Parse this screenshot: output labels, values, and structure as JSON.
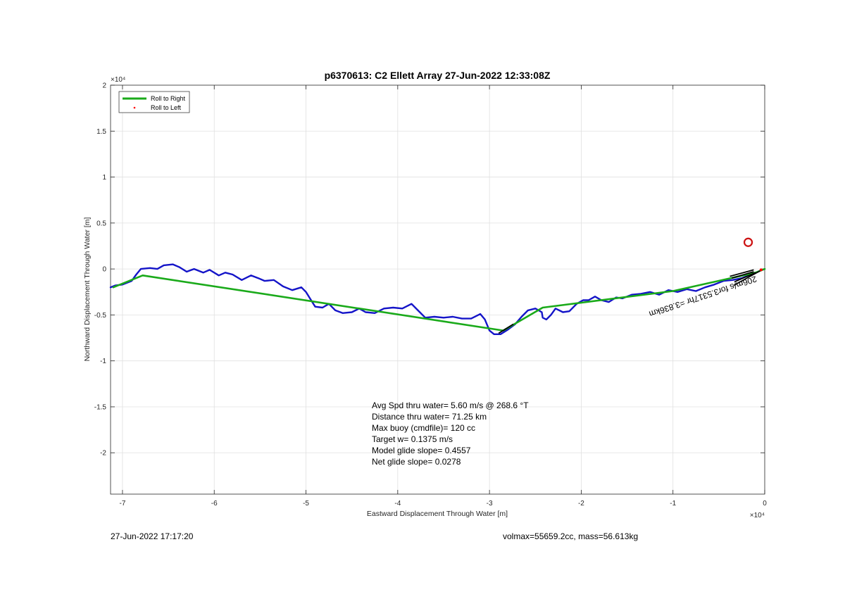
{
  "chart_data": {
    "type": "line",
    "title": "p6370613: C2 Ellett Array 27-Jun-2022 12:33:08Z",
    "xlabel": "Eastward Displacement Through Water [m]",
    "ylabel": "Northward Displacement Through Water [m]",
    "x_exponent": "×10⁴",
    "y_exponent": "×10⁴",
    "xlim": [
      -7.13,
      0
    ],
    "ylim": [
      -2.45,
      2.0
    ],
    "x_scale_factor": 10000,
    "xticks": [
      -7,
      -6,
      -5,
      -4,
      -3,
      -2,
      -1,
      0
    ],
    "xtick_labels": [
      "-7",
      "-6",
      "-5",
      "-4",
      "-3",
      "-2",
      "-1",
      "0"
    ],
    "yticks": [
      2,
      1.5,
      1,
      0.5,
      0,
      -0.5,
      -1,
      -1.5,
      -2
    ],
    "ytick_labels": [
      "2",
      "1.5",
      "1",
      "0.5",
      "0",
      "-0.5",
      "-1",
      "-1.5",
      "-2"
    ],
    "grid": true,
    "legend_placement": "top-left",
    "series": [
      {
        "name": "Roll to Right",
        "color": "#1aaa1a",
        "style": "line",
        "points": [
          [
            -7.1,
            -0.2
          ],
          [
            -6.78,
            -0.07
          ],
          [
            -2.85,
            -0.67
          ],
          [
            -2.42,
            -0.42
          ],
          [
            -1.0,
            -0.24
          ],
          [
            -0.1,
            -0.04
          ],
          [
            0,
            0
          ]
        ]
      },
      {
        "name": "Roll to Left",
        "color": "#ff0000",
        "style": "marker",
        "points": [
          [
            -0.04,
            -0.01
          ]
        ]
      },
      {
        "name": "",
        "color": "#1414c8",
        "style": "line",
        "points": [
          [
            -7.13,
            -0.2
          ],
          [
            -7.08,
            -0.18
          ],
          [
            -7.0,
            -0.17
          ],
          [
            -6.9,
            -0.13
          ],
          [
            -6.85,
            -0.06
          ],
          [
            -6.8,
            0.0
          ],
          [
            -6.7,
            0.01
          ],
          [
            -6.62,
            0.0
          ],
          [
            -6.55,
            0.04
          ],
          [
            -6.45,
            0.05
          ],
          [
            -6.38,
            0.02
          ],
          [
            -6.3,
            -0.03
          ],
          [
            -6.22,
            0.0
          ],
          [
            -6.12,
            -0.04
          ],
          [
            -6.05,
            -0.01
          ],
          [
            -5.95,
            -0.07
          ],
          [
            -5.88,
            -0.04
          ],
          [
            -5.8,
            -0.06
          ],
          [
            -5.7,
            -0.12
          ],
          [
            -5.6,
            -0.07
          ],
          [
            -5.52,
            -0.1
          ],
          [
            -5.45,
            -0.13
          ],
          [
            -5.35,
            -0.12
          ],
          [
            -5.25,
            -0.19
          ],
          [
            -5.15,
            -0.23
          ],
          [
            -5.05,
            -0.2
          ],
          [
            -5.0,
            -0.25
          ],
          [
            -4.95,
            -0.33
          ],
          [
            -4.9,
            -0.41
          ],
          [
            -4.82,
            -0.42
          ],
          [
            -4.75,
            -0.38
          ],
          [
            -4.68,
            -0.45
          ],
          [
            -4.6,
            -0.48
          ],
          [
            -4.5,
            -0.47
          ],
          [
            -4.42,
            -0.43
          ],
          [
            -4.35,
            -0.47
          ],
          [
            -4.25,
            -0.48
          ],
          [
            -4.15,
            -0.43
          ],
          [
            -4.05,
            -0.42
          ],
          [
            -3.95,
            -0.43
          ],
          [
            -3.85,
            -0.38
          ],
          [
            -3.78,
            -0.45
          ],
          [
            -3.7,
            -0.53
          ],
          [
            -3.6,
            -0.52
          ],
          [
            -3.5,
            -0.53
          ],
          [
            -3.4,
            -0.52
          ],
          [
            -3.3,
            -0.54
          ],
          [
            -3.2,
            -0.54
          ],
          [
            -3.1,
            -0.49
          ],
          [
            -3.05,
            -0.55
          ],
          [
            -3.0,
            -0.67
          ],
          [
            -2.95,
            -0.71
          ],
          [
            -2.88,
            -0.71
          ],
          [
            -2.8,
            -0.66
          ],
          [
            -2.72,
            -0.6
          ],
          [
            -2.65,
            -0.52
          ],
          [
            -2.58,
            -0.45
          ],
          [
            -2.5,
            -0.43
          ],
          [
            -2.43,
            -0.47
          ],
          [
            -2.42,
            -0.53
          ],
          [
            -2.38,
            -0.55
          ],
          [
            -2.33,
            -0.5
          ],
          [
            -2.28,
            -0.43
          ],
          [
            -2.2,
            -0.47
          ],
          [
            -2.13,
            -0.46
          ],
          [
            -2.05,
            -0.38
          ],
          [
            -1.98,
            -0.34
          ],
          [
            -1.92,
            -0.34
          ],
          [
            -1.85,
            -0.3
          ],
          [
            -1.78,
            -0.34
          ],
          [
            -1.7,
            -0.36
          ],
          [
            -1.62,
            -0.31
          ],
          [
            -1.55,
            -0.32
          ],
          [
            -1.45,
            -0.28
          ],
          [
            -1.35,
            -0.27
          ],
          [
            -1.25,
            -0.25
          ],
          [
            -1.15,
            -0.28
          ],
          [
            -1.05,
            -0.23
          ],
          [
            -0.95,
            -0.25
          ],
          [
            -0.85,
            -0.22
          ],
          [
            -0.75,
            -0.24
          ],
          [
            -0.65,
            -0.2
          ],
          [
            -0.55,
            -0.17
          ],
          [
            -0.45,
            -0.13
          ],
          [
            -0.35,
            -0.12
          ],
          [
            -0.25,
            -0.1
          ],
          [
            -0.15,
            -0.06
          ],
          [
            -0.05,
            -0.02
          ],
          [
            0,
            0
          ]
        ]
      }
    ],
    "marker": {
      "color": "#cc1111",
      "shape": "circle",
      "point": [
        -0.18,
        0.29
      ]
    },
    "current_vectors": {
      "color": "#000000",
      "segments": [
        [
          [
            -0.38,
            -0.08
          ],
          [
            -0.12,
            -0.01
          ]
        ],
        [
          [
            -0.36,
            -0.1
          ],
          [
            -0.12,
            -0.03
          ]
        ],
        [
          [
            -0.34,
            -0.18
          ],
          [
            -0.05,
            -0.02
          ]
        ],
        [
          [
            -0.33,
            -0.14
          ],
          [
            -0.1,
            -0.04
          ]
        ],
        [
          [
            -2.9,
            -0.7
          ],
          [
            -2.74,
            -0.6
          ]
        ]
      ]
    },
    "annotations": {
      "rotated_label": "206m/s for3.5317hr =3.836km",
      "stats": [
        "Avg Spd thru water=  5.60 m/s @ 268.6 °T",
        "Distance thru water= 71.25 km",
        "Max buoy (cmdfile)= 120 cc",
        "Target w= 0.1375 m/s",
        "Model glide slope= 0.4557",
        "Net glide slope= 0.0278"
      ]
    },
    "footer": {
      "left": "27-Jun-2022 17:17:20",
      "right": "volmax=55659.2cc, mass=56.613kg"
    }
  }
}
